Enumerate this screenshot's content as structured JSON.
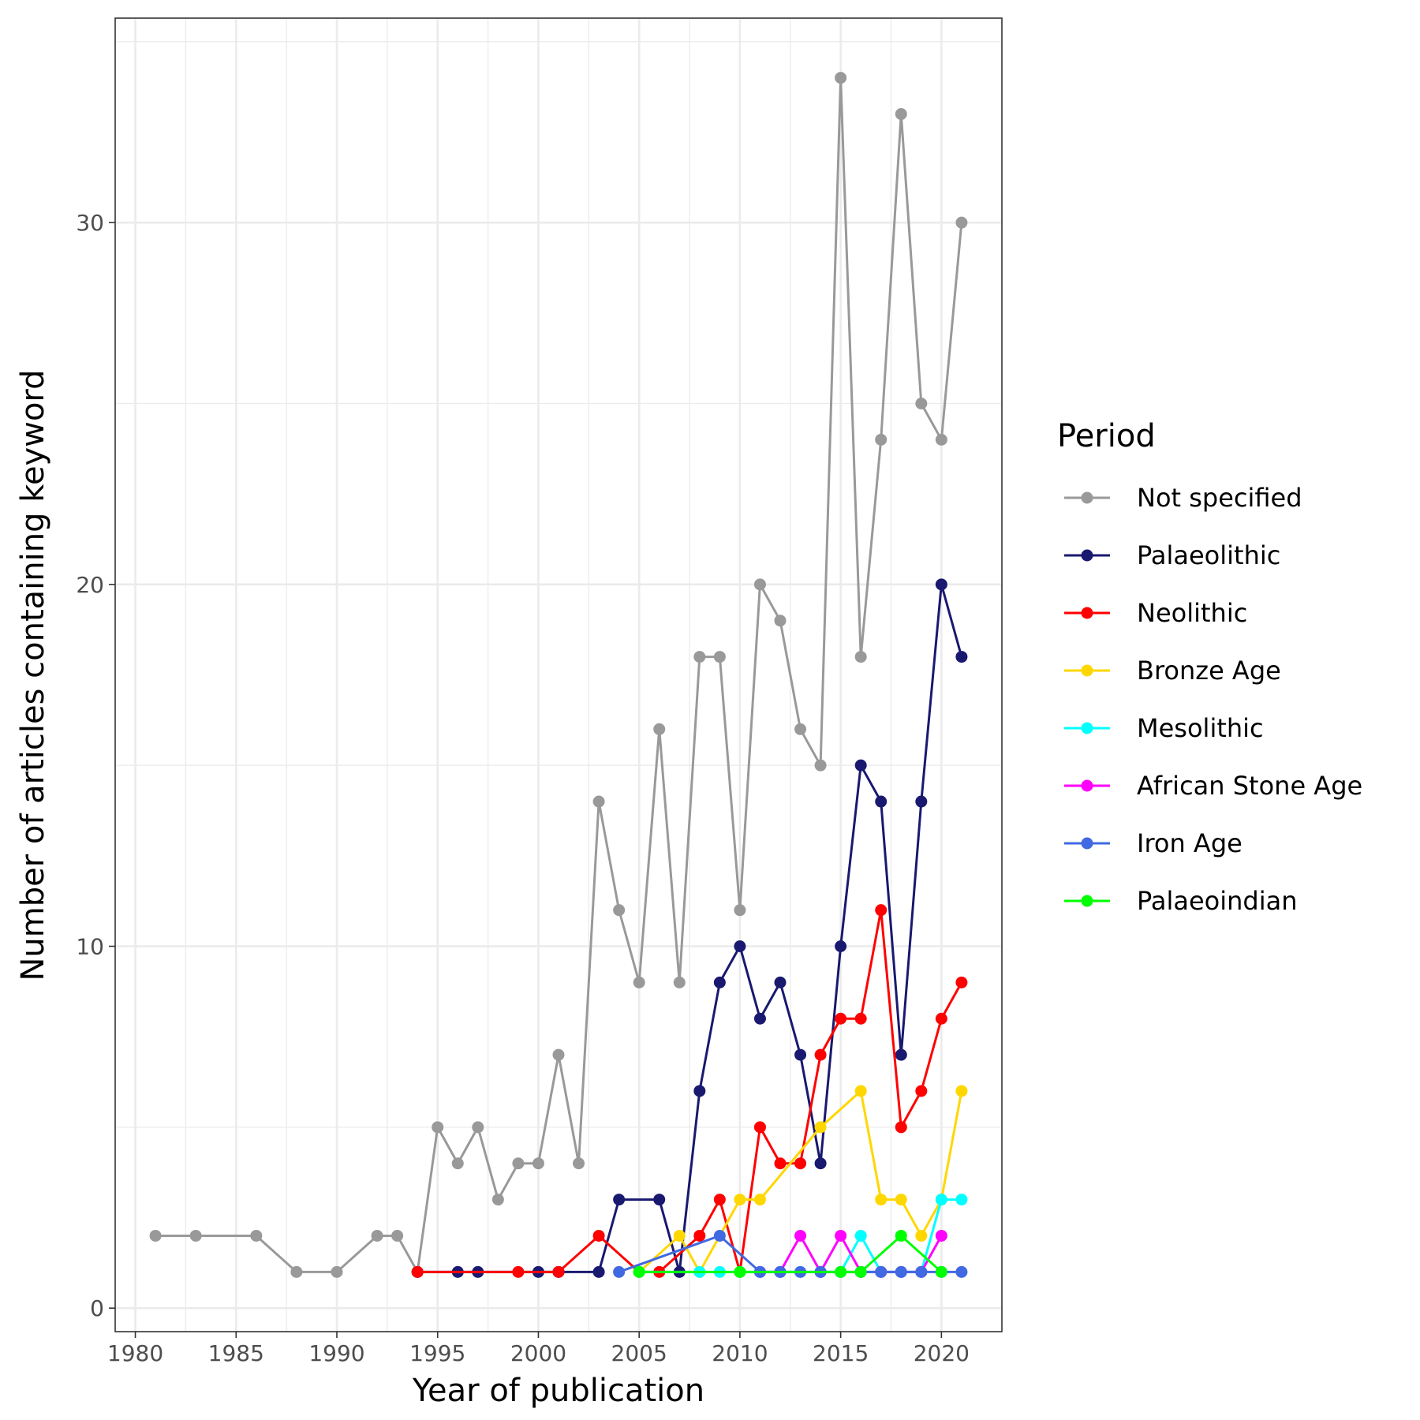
{
  "chart_data": {
    "type": "line",
    "title": "",
    "xlabel": "Year of publication",
    "ylabel": "Number of articles containing keyword",
    "xlim": [
      1979,
      2023
    ],
    "ylim": [
      -0.65,
      35.65
    ],
    "x_ticks": [
      1980,
      1985,
      1990,
      1995,
      2000,
      2005,
      2010,
      2015,
      2020
    ],
    "y_ticks": [
      0,
      10,
      20,
      30
    ],
    "grid": true,
    "legend": {
      "title": "Period",
      "position": "right"
    },
    "series": [
      {
        "name": "Not specified",
        "color": "#999999",
        "x": [
          1981,
          1983,
          1986,
          1988,
          1990,
          1992,
          1993,
          1994,
          1995,
          1996,
          1997,
          1998,
          1999,
          2000,
          2001,
          2002,
          2003,
          2004,
          2005,
          2006,
          2007,
          2008,
          2009,
          2010,
          2011,
          2012,
          2013,
          2014,
          2015,
          2016,
          2017,
          2018,
          2019,
          2020,
          2021
        ],
        "y": [
          2,
          2,
          2,
          1,
          1,
          2,
          2,
          1,
          5,
          4,
          5,
          3,
          4,
          4,
          7,
          4,
          14,
          11,
          9,
          16,
          9,
          18,
          18,
          11,
          20,
          19,
          16,
          15,
          34,
          18,
          24,
          33,
          25,
          24,
          30
        ]
      },
      {
        "name": "Palaeolithic",
        "color": "#191970",
        "x": [
          1994,
          1996,
          1997,
          2000,
          2001,
          2003,
          2004,
          2006,
          2007,
          2008,
          2009,
          2010,
          2011,
          2012,
          2013,
          2014,
          2015,
          2016,
          2017,
          2018,
          2019,
          2020,
          2021
        ],
        "y": [
          1,
          1,
          1,
          1,
          1,
          1,
          3,
          3,
          1,
          6,
          9,
          10,
          8,
          9,
          7,
          4,
          10,
          15,
          14,
          7,
          14,
          20,
          18
        ]
      },
      {
        "name": "Neolithic",
        "color": "#ff0000",
        "x": [
          1994,
          1999,
          2001,
          2003,
          2005,
          2006,
          2008,
          2009,
          2010,
          2011,
          2012,
          2013,
          2014,
          2015,
          2016,
          2017,
          2018,
          2019,
          2020,
          2021
        ],
        "y": [
          1,
          1,
          1,
          2,
          1,
          1,
          2,
          3,
          1,
          5,
          4,
          4,
          7,
          8,
          8,
          11,
          5,
          6,
          8,
          9
        ]
      },
      {
        "name": "Bronze Age",
        "color": "#ffd700",
        "x": [
          2005,
          2007,
          2008,
          2010,
          2011,
          2014,
          2016,
          2017,
          2018,
          2019,
          2020,
          2021
        ],
        "y": [
          1,
          2,
          1,
          3,
          3,
          5,
          6,
          3,
          3,
          2,
          3,
          6
        ]
      },
      {
        "name": "Mesolithic",
        "color": "#00ffff",
        "x": [
          2005,
          2008,
          2009,
          2010,
          2011,
          2012,
          2013,
          2014,
          2015,
          2016,
          2017,
          2018,
          2019,
          2020,
          2021
        ],
        "y": [
          1,
          1,
          1,
          1,
          1,
          1,
          1,
          1,
          1,
          2,
          1,
          1,
          1,
          3,
          3
        ]
      },
      {
        "name": "African Stone Age",
        "color": "#ff00ff",
        "x": [
          2011,
          2012,
          2013,
          2014,
          2015,
          2016,
          2017,
          2018,
          2019,
          2020
        ],
        "y": [
          1,
          1,
          2,
          1,
          2,
          1,
          1,
          1,
          1,
          2
        ]
      },
      {
        "name": "Iron Age",
        "color": "#4169e1",
        "x": [
          2004,
          2009,
          2011,
          2012,
          2013,
          2014,
          2015,
          2016,
          2017,
          2018,
          2019,
          2020,
          2021
        ],
        "y": [
          1,
          2,
          1,
          1,
          1,
          1,
          1,
          1,
          1,
          1,
          1,
          1,
          1
        ]
      },
      {
        "name": "Palaeoindian",
        "color": "#00ff00",
        "x": [
          2005,
          2010,
          2015,
          2016,
          2018,
          2020
        ],
        "y": [
          1,
          1,
          1,
          1,
          2,
          1
        ]
      }
    ]
  }
}
